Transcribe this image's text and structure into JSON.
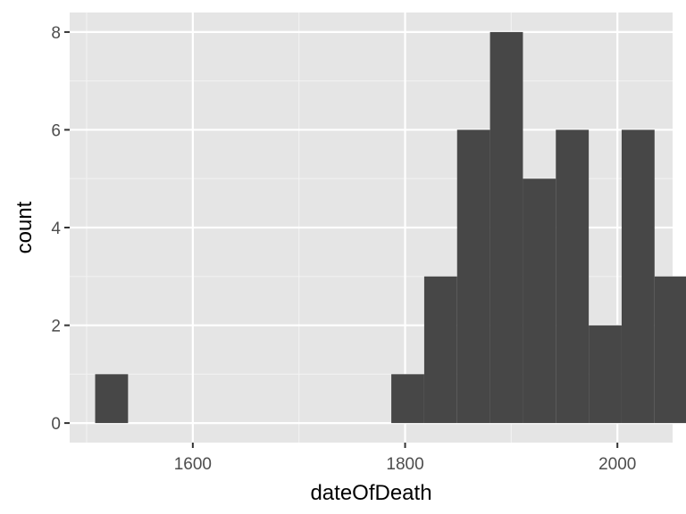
{
  "chart_data": {
    "type": "bar",
    "subtype": "histogram",
    "title": "",
    "xlabel": "dateOfDeath",
    "ylabel": "count",
    "bin_width": 31,
    "bins": [
      {
        "start": 1508,
        "end": 1539,
        "count": 1
      },
      {
        "start": 1539,
        "end": 1570,
        "count": 0
      },
      {
        "start": 1570,
        "end": 1601,
        "count": 0
      },
      {
        "start": 1601,
        "end": 1632,
        "count": 0
      },
      {
        "start": 1632,
        "end": 1663,
        "count": 0
      },
      {
        "start": 1663,
        "end": 1694,
        "count": 0
      },
      {
        "start": 1694,
        "end": 1725,
        "count": 0
      },
      {
        "start": 1725,
        "end": 1756,
        "count": 0
      },
      {
        "start": 1756,
        "end": 1787,
        "count": 0
      },
      {
        "start": 1787,
        "end": 1818,
        "count": 1
      },
      {
        "start": 1818,
        "end": 1849,
        "count": 3
      },
      {
        "start": 1849,
        "end": 1880,
        "count": 6
      },
      {
        "start": 1880,
        "end": 1911,
        "count": 8
      },
      {
        "start": 1911,
        "end": 1942,
        "count": 5
      },
      {
        "start": 1942,
        "end": 1973,
        "count": 6
      },
      {
        "start": 1973,
        "end": 2004,
        "count": 2
      },
      {
        "start": 2004,
        "end": 2035,
        "count": 6
      },
      {
        "start": 2035,
        "end": 2066,
        "count": 3
      }
    ],
    "xlim": [
      1484,
      2052
    ],
    "ylim": [
      -0.4,
      8.4
    ],
    "x_ticks": [
      1600,
      1800,
      2000
    ],
    "x_tick_labels": [
      "1600",
      "1800",
      "2000"
    ],
    "y_ticks": [
      0,
      2,
      4,
      6,
      8
    ],
    "y_tick_labels": [
      "0",
      "2",
      "4",
      "6",
      "8"
    ],
    "x_minor_ticks": [
      1500,
      1700,
      1900
    ],
    "y_minor_ticks": [
      1,
      3,
      5,
      7
    ],
    "grid": true,
    "legend": "none",
    "colors": {
      "panel": "#e5e5e5",
      "bar": "#474747",
      "grid_major": "#ffffff",
      "grid_minor": "#f2f2f2",
      "tick_label": "#4d4d4d",
      "axis_title": "#000000"
    }
  }
}
